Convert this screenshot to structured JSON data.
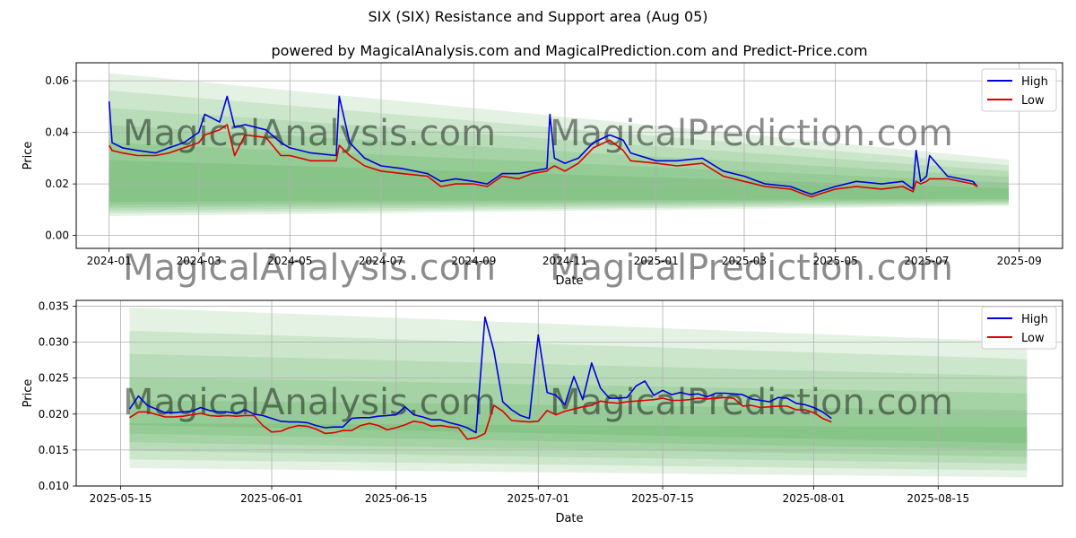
{
  "figure": {
    "title": "SIX (SIX) Resistance and Support area (Aug 05)",
    "colors": {
      "high": "#0000dd",
      "low": "#dd0000",
      "band": "#2e9a2e",
      "grid": "#b0b0b0",
      "watermark": "#cccccc"
    }
  },
  "chart_data": [
    {
      "type": "line",
      "title": "powered by MagicalAnalysis.com and MagicalPrediction.com and Predict-Price.com",
      "xlabel": "Date",
      "ylabel": "Price",
      "x_ticks": [
        "2024-01",
        "2024-03",
        "2024-05",
        "2024-07",
        "2024-09",
        "2024-11",
        "2025-01",
        "2025-03",
        "2025-05",
        "2025-07",
        "2025-09"
      ],
      "y_ticks": [
        "0.00",
        "0.02",
        "0.04",
        "0.06"
      ],
      "xlim": [
        "2023-12-10",
        "2025-09-30"
      ],
      "ylim": [
        -0.005,
        0.067
      ],
      "grid": true,
      "legend": "top-right",
      "watermarks": [
        "MagicalAnalysis.com",
        "MagicalPrediction.com",
        "MagicalAnalysis.com",
        "MagicalPrediction.com"
      ],
      "series": [
        {
          "name": "High",
          "x": [
            "2024-01-01",
            "2024-01-03",
            "2024-01-10",
            "2024-01-20",
            "2024-02-01",
            "2024-02-10",
            "2024-02-20",
            "2024-03-01",
            "2024-03-05",
            "2024-03-15",
            "2024-03-20",
            "2024-03-25",
            "2024-04-01",
            "2024-04-15",
            "2024-04-25",
            "2024-05-01",
            "2024-05-15",
            "2024-06-01",
            "2024-06-03",
            "2024-06-10",
            "2024-06-20",
            "2024-07-01",
            "2024-07-15",
            "2024-08-01",
            "2024-08-10",
            "2024-08-20",
            "2024-09-01",
            "2024-09-10",
            "2024-09-20",
            "2024-10-01",
            "2024-10-10",
            "2024-10-20",
            "2024-10-22",
            "2024-10-25",
            "2024-11-01",
            "2024-11-10",
            "2024-11-20",
            "2024-12-01",
            "2024-12-10",
            "2024-12-15",
            "2025-01-01",
            "2025-01-15",
            "2025-02-01",
            "2025-02-15",
            "2025-03-01",
            "2025-03-15",
            "2025-04-01",
            "2025-04-10",
            "2025-04-15",
            "2025-04-20",
            "2025-05-01",
            "2025-05-15",
            "2025-06-01",
            "2025-06-15",
            "2025-06-22",
            "2025-06-24",
            "2025-06-27",
            "2025-07-01",
            "2025-07-03",
            "2025-07-15",
            "2025-08-01",
            "2025-08-04"
          ],
          "values": [
            0.052,
            0.036,
            0.034,
            0.033,
            0.032,
            0.034,
            0.036,
            0.04,
            0.047,
            0.044,
            0.054,
            0.042,
            0.043,
            0.041,
            0.036,
            0.034,
            0.032,
            0.031,
            0.054,
            0.036,
            0.03,
            0.027,
            0.026,
            0.024,
            0.021,
            0.022,
            0.021,
            0.02,
            0.024,
            0.024,
            0.025,
            0.026,
            0.047,
            0.03,
            0.028,
            0.03,
            0.036,
            0.039,
            0.037,
            0.032,
            0.029,
            0.029,
            0.03,
            0.025,
            0.023,
            0.02,
            0.019,
            0.017,
            0.016,
            0.017,
            0.019,
            0.021,
            0.02,
            0.021,
            0.018,
            0.033,
            0.021,
            0.023,
            0.031,
            0.023,
            0.021,
            0.019
          ]
        },
        {
          "name": "Low",
          "x": [
            "2024-01-01",
            "2024-01-03",
            "2024-01-10",
            "2024-01-20",
            "2024-02-01",
            "2024-02-10",
            "2024-02-20",
            "2024-03-01",
            "2024-03-05",
            "2024-03-15",
            "2024-03-20",
            "2024-03-25",
            "2024-04-01",
            "2024-04-15",
            "2024-04-25",
            "2024-05-01",
            "2024-05-15",
            "2024-06-01",
            "2024-06-03",
            "2024-06-10",
            "2024-06-20",
            "2024-07-01",
            "2024-07-15",
            "2024-08-01",
            "2024-08-10",
            "2024-08-20",
            "2024-09-01",
            "2024-09-10",
            "2024-09-20",
            "2024-10-01",
            "2024-10-10",
            "2024-10-20",
            "2024-10-22",
            "2024-10-25",
            "2024-11-01",
            "2024-11-10",
            "2024-11-20",
            "2024-12-01",
            "2024-12-10",
            "2024-12-15",
            "2025-01-01",
            "2025-01-15",
            "2025-02-01",
            "2025-02-15",
            "2025-03-01",
            "2025-03-15",
            "2025-04-01",
            "2025-04-10",
            "2025-04-15",
            "2025-04-20",
            "2025-05-01",
            "2025-05-15",
            "2025-06-01",
            "2025-06-15",
            "2025-06-22",
            "2025-06-24",
            "2025-06-27",
            "2025-07-01",
            "2025-07-03",
            "2025-07-15",
            "2025-08-01",
            "2025-08-04"
          ],
          "values": [
            0.035,
            0.033,
            0.032,
            0.031,
            0.031,
            0.032,
            0.034,
            0.036,
            0.039,
            0.041,
            0.043,
            0.031,
            0.039,
            0.038,
            0.031,
            0.031,
            0.029,
            0.029,
            0.035,
            0.031,
            0.027,
            0.025,
            0.024,
            0.023,
            0.019,
            0.02,
            0.02,
            0.019,
            0.023,
            0.022,
            0.024,
            0.025,
            0.026,
            0.027,
            0.025,
            0.028,
            0.034,
            0.037,
            0.033,
            0.029,
            0.028,
            0.027,
            0.028,
            0.023,
            0.021,
            0.019,
            0.018,
            0.016,
            0.015,
            0.016,
            0.018,
            0.019,
            0.018,
            0.019,
            0.017,
            0.021,
            0.02,
            0.021,
            0.022,
            0.022,
            0.02,
            0.019
          ]
        }
      ]
    },
    {
      "type": "line",
      "title": "",
      "xlabel": "Date",
      "ylabel": "Price",
      "x_ticks": [
        "2025-05-15",
        "2025-06-01",
        "2025-06-15",
        "2025-07-01",
        "2025-07-15",
        "2025-08-01",
        "2025-08-15"
      ],
      "y_ticks": [
        "0.010",
        "0.015",
        "0.020",
        "0.025",
        "0.030",
        "0.035"
      ],
      "xlim": [
        "2025-05-10",
        "2025-08-29"
      ],
      "ylim": [
        0.01,
        0.0358
      ],
      "grid": true,
      "legend": "top-right",
      "watermarks": [
        "MagicalAnalysis.com",
        "MagicalPrediction.com"
      ],
      "series": [
        {
          "name": "High",
          "x": [
            "2025-05-16",
            "2025-05-17",
            "2025-05-18",
            "2025-05-20",
            "2025-05-21",
            "2025-05-22",
            "2025-05-23",
            "2025-05-24",
            "2025-05-25",
            "2025-05-26",
            "2025-05-27",
            "2025-05-28",
            "2025-05-29",
            "2025-05-30",
            "2025-05-31",
            "2025-06-01",
            "2025-06-02",
            "2025-06-03",
            "2025-06-04",
            "2025-06-05",
            "2025-06-06",
            "2025-06-07",
            "2025-06-08",
            "2025-06-09",
            "2025-06-10",
            "2025-06-11",
            "2025-06-12",
            "2025-06-13",
            "2025-06-14",
            "2025-06-15",
            "2025-06-16",
            "2025-06-17",
            "2025-06-18",
            "2025-06-19",
            "2025-06-20",
            "2025-06-21",
            "2025-06-22",
            "2025-06-23",
            "2025-06-24",
            "2025-06-25",
            "2025-06-26",
            "2025-06-27",
            "2025-06-28",
            "2025-06-29",
            "2025-06-30",
            "2025-07-01",
            "2025-07-02",
            "2025-07-03",
            "2025-07-04",
            "2025-07-05",
            "2025-07-06",
            "2025-07-07",
            "2025-07-08",
            "2025-07-09",
            "2025-07-10",
            "2025-07-11",
            "2025-07-12",
            "2025-07-13",
            "2025-07-14",
            "2025-07-15",
            "2025-07-16",
            "2025-07-17",
            "2025-07-18",
            "2025-07-19",
            "2025-07-20",
            "2025-07-21",
            "2025-07-22",
            "2025-07-23",
            "2025-07-24",
            "2025-07-25",
            "2025-07-26",
            "2025-07-27",
            "2025-07-28",
            "2025-07-29",
            "2025-07-30",
            "2025-07-31",
            "2025-08-01",
            "2025-08-02",
            "2025-08-03"
          ],
          "values": [
            0.0207,
            0.0225,
            0.0212,
            0.0202,
            0.0202,
            0.0203,
            0.0204,
            0.0209,
            0.0205,
            0.0203,
            0.0203,
            0.0201,
            0.0206,
            0.02,
            0.0198,
            0.0194,
            0.019,
            0.0189,
            0.0189,
            0.0188,
            0.0184,
            0.0181,
            0.0182,
            0.0182,
            0.0194,
            0.0195,
            0.0195,
            0.0197,
            0.0198,
            0.0199,
            0.021,
            0.0199,
            0.0196,
            0.0192,
            0.0192,
            0.0188,
            0.0185,
            0.0181,
            0.0174,
            0.0335,
            0.0288,
            0.0217,
            0.0206,
            0.0198,
            0.0194,
            0.031,
            0.023,
            0.0226,
            0.0213,
            0.0252,
            0.022,
            0.0271,
            0.0236,
            0.0222,
            0.0222,
            0.0223,
            0.0239,
            0.0246,
            0.0226,
            0.0233,
            0.0227,
            0.023,
            0.0227,
            0.0228,
            0.0224,
            0.0229,
            0.0229,
            0.0228,
            0.0227,
            0.0221,
            0.0219,
            0.0217,
            0.0223,
            0.0222,
            0.0215,
            0.0213,
            0.0209,
            0.0203,
            0.0194
          ]
        },
        {
          "name": "Low",
          "x": [
            "2025-05-16",
            "2025-05-17",
            "2025-05-18",
            "2025-05-20",
            "2025-05-21",
            "2025-05-22",
            "2025-05-23",
            "2025-05-24",
            "2025-05-25",
            "2025-05-26",
            "2025-05-27",
            "2025-05-28",
            "2025-05-29",
            "2025-05-30",
            "2025-05-31",
            "2025-06-01",
            "2025-06-02",
            "2025-06-03",
            "2025-06-04",
            "2025-06-05",
            "2025-06-06",
            "2025-06-07",
            "2025-06-08",
            "2025-06-09",
            "2025-06-10",
            "2025-06-11",
            "2025-06-12",
            "2025-06-13",
            "2025-06-14",
            "2025-06-15",
            "2025-06-16",
            "2025-06-17",
            "2025-06-18",
            "2025-06-19",
            "2025-06-20",
            "2025-06-21",
            "2025-06-22",
            "2025-06-23",
            "2025-06-24",
            "2025-06-25",
            "2025-06-26",
            "2025-06-27",
            "2025-06-28",
            "2025-06-29",
            "2025-06-30",
            "2025-07-01",
            "2025-07-02",
            "2025-07-03",
            "2025-07-04",
            "2025-07-05",
            "2025-07-06",
            "2025-07-07",
            "2025-07-08",
            "2025-07-09",
            "2025-07-10",
            "2025-07-11",
            "2025-07-12",
            "2025-07-13",
            "2025-07-14",
            "2025-07-15",
            "2025-07-16",
            "2025-07-17",
            "2025-07-18",
            "2025-07-19",
            "2025-07-20",
            "2025-07-21",
            "2025-07-22",
            "2025-07-23",
            "2025-07-24",
            "2025-07-25",
            "2025-07-26",
            "2025-07-27",
            "2025-07-28",
            "2025-07-29",
            "2025-07-30",
            "2025-07-31",
            "2025-08-01",
            "2025-08-02",
            "2025-08-03"
          ],
          "values": [
            0.0195,
            0.0203,
            0.0203,
            0.0196,
            0.0196,
            0.0197,
            0.0199,
            0.0201,
            0.0198,
            0.0197,
            0.0198,
            0.0197,
            0.0198,
            0.0198,
            0.0184,
            0.0175,
            0.0176,
            0.0181,
            0.0184,
            0.0183,
            0.0179,
            0.0173,
            0.0174,
            0.0177,
            0.0177,
            0.0184,
            0.0187,
            0.0184,
            0.0178,
            0.0181,
            0.0185,
            0.019,
            0.0188,
            0.0183,
            0.0184,
            0.0182,
            0.0181,
            0.0165,
            0.0167,
            0.0173,
            0.0212,
            0.0204,
            0.0191,
            0.019,
            0.0189,
            0.019,
            0.0205,
            0.0199,
            0.0204,
            0.0207,
            0.021,
            0.0212,
            0.0218,
            0.0216,
            0.0215,
            0.0217,
            0.0218,
            0.0219,
            0.022,
            0.0222,
            0.0219,
            0.0219,
            0.022,
            0.0222,
            0.0221,
            0.0222,
            0.0223,
            0.0222,
            0.0211,
            0.0212,
            0.0209,
            0.021,
            0.0211,
            0.0211,
            0.0206,
            0.0206,
            0.0202,
            0.0194,
            0.0189
          ]
        }
      ]
    }
  ]
}
